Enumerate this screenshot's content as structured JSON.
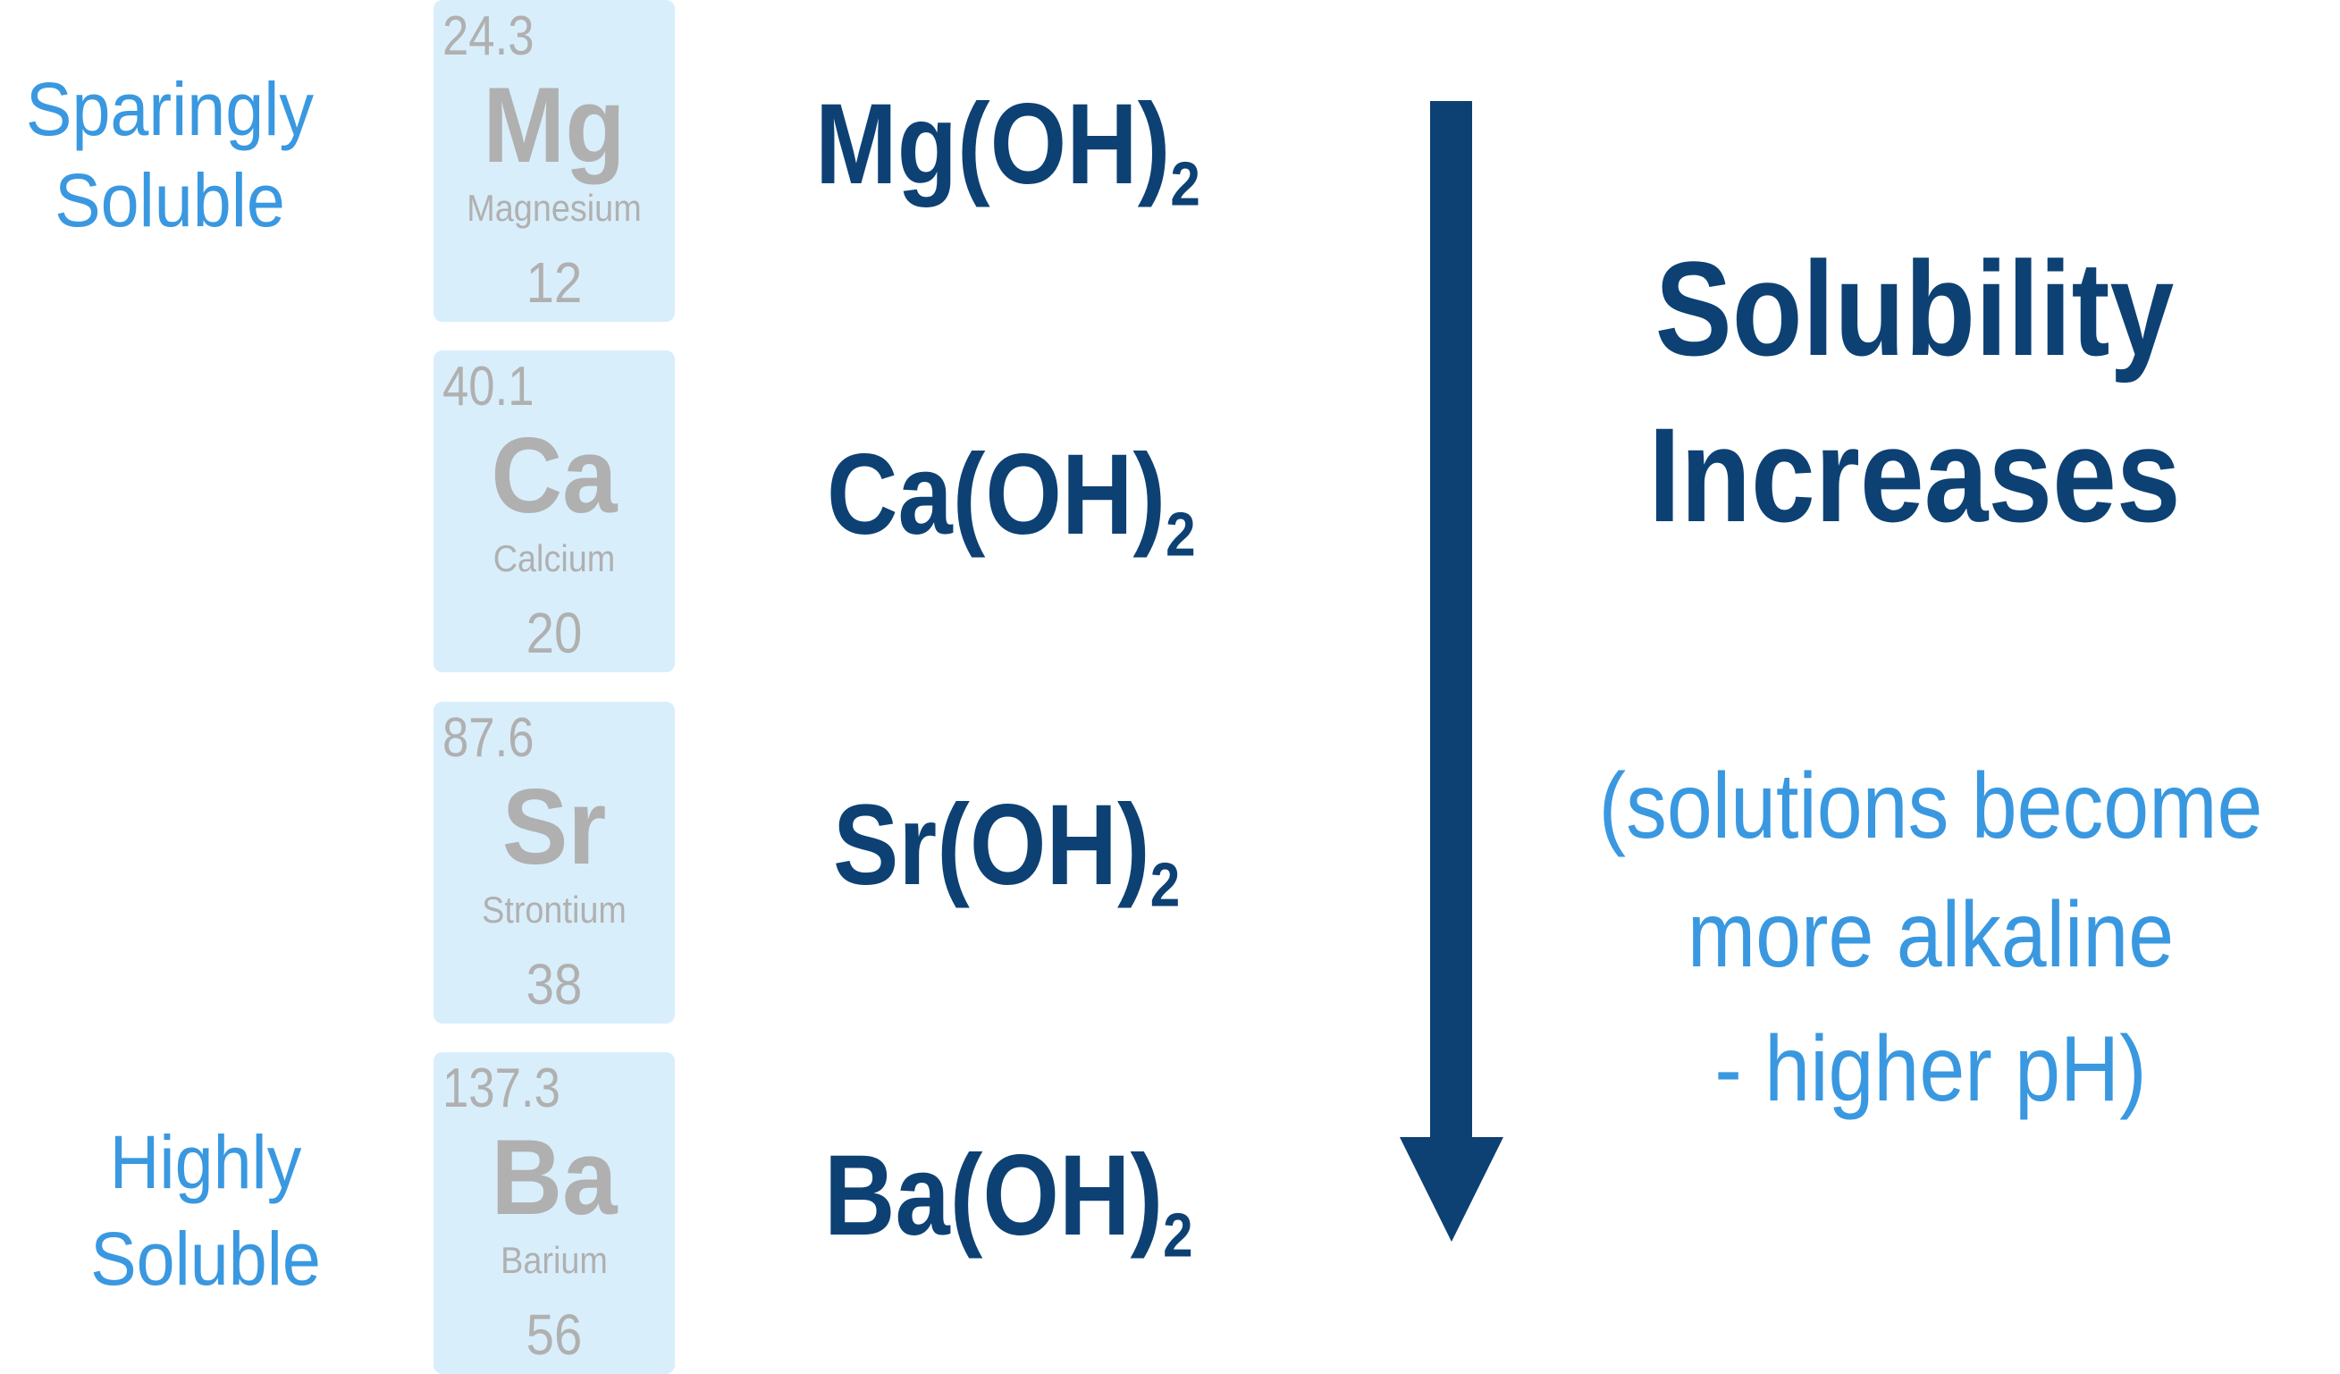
{
  "labels": {
    "top": [
      "Sparingly",
      "Soluble"
    ],
    "bottom": [
      "Highly",
      "Soluble"
    ]
  },
  "elements": [
    {
      "mass": "24.3",
      "symbol": "Mg",
      "name": "Magnesium",
      "number": "12",
      "formula": "Mg(OH)",
      "subscript": "2"
    },
    {
      "mass": "40.1",
      "symbol": "Ca",
      "name": "Calcium",
      "number": "20",
      "formula": "Ca(OH)",
      "subscript": "2"
    },
    {
      "mass": "87.6",
      "symbol": "Sr",
      "name": "Strontium",
      "number": "38",
      "formula": "Sr(OH)",
      "subscript": "2"
    },
    {
      "mass": "137.3",
      "symbol": "Ba",
      "name": "Barium",
      "number": "56",
      "formula": "Ba(OH)",
      "subscript": "2"
    }
  ],
  "trend": {
    "title": [
      "Solubility",
      "Increases"
    ],
    "note": [
      "(solutions become",
      "more alkaline",
      "- higher pH)"
    ],
    "direction": "down"
  },
  "colors": {
    "dark_blue": "#0d4174",
    "light_blue": "#3a98e0",
    "tile_bg": "#d9eefb",
    "tile_text": "#b0b0b0"
  }
}
